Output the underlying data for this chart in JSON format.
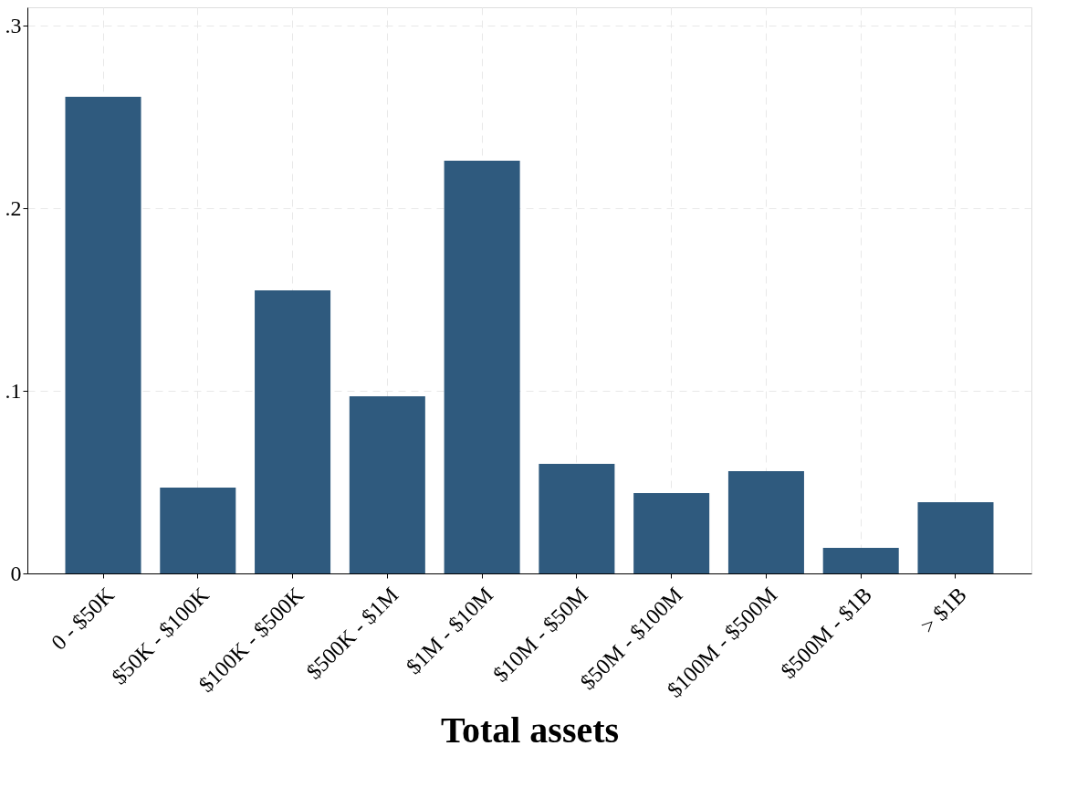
{
  "chart_data": {
    "type": "bar",
    "xlabel": "Total assets",
    "categories": [
      "0 - $50K",
      "$50K - $100K",
      "$100K - $500K",
      "$500K - $1M",
      "$1M - $10M",
      "$10M - $50M",
      "$50M - $100M",
      "$100M - $500M",
      "$500M - $1B",
      "> $1B"
    ],
    "values": [
      0.261,
      0.047,
      0.155,
      0.097,
      0.226,
      0.06,
      0.044,
      0.056,
      0.014,
      0.039
    ],
    "color": "#2f5a7e",
    "ylim": [
      0,
      0.31
    ],
    "yticks": [
      0,
      {
        "value": 0.1,
        "label": ".1"
      },
      {
        "value": 0.2,
        "label": ".2"
      },
      {
        "value": 0.3,
        "label": ".3"
      }
    ],
    "grid": true
  }
}
